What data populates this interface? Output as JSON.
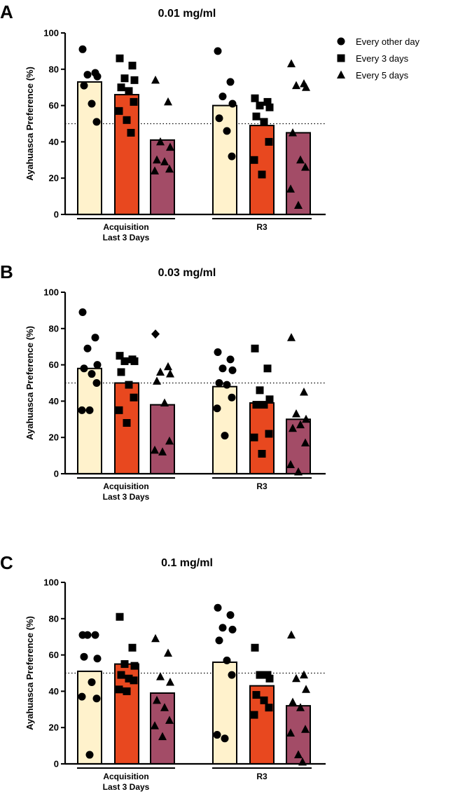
{
  "colors": {
    "Every other day": "#fff2cc",
    "Every 3 days": "#e8481f",
    "Every 5 days": "#a34c67",
    "marker": "#000000",
    "axis": "#000000"
  },
  "legend": {
    "items": [
      {
        "label": "Every other day",
        "marker": "circle"
      },
      {
        "label": "Every 3 days",
        "marker": "square"
      },
      {
        "label": "Every 5 days",
        "marker": "triangle"
      }
    ]
  },
  "chart_data": [
    {
      "type": "bar",
      "panel": "A",
      "title": "0.01 mg/ml",
      "ylabel": "Ayahuasca Preference (%)",
      "ylim": [
        0,
        100
      ],
      "yticks": [
        0,
        20,
        40,
        60,
        80,
        100
      ],
      "reference_line": 50,
      "groups": [
        {
          "label_lines": [
            "Acquisition",
            "Last 3 Days"
          ],
          "bars": [
            {
              "series": "Every other day",
              "value": 73,
              "points": [
                91,
                78,
                77,
                76,
                71,
                61,
                51
              ]
            },
            {
              "series": "Every 3 days",
              "value": 66,
              "points": [
                86,
                82,
                75,
                74,
                70,
                68,
                62,
                57,
                52,
                45
              ]
            },
            {
              "series": "Every 5 days",
              "value": 41,
              "points": [
                74,
                62,
                40,
                37,
                30,
                29,
                25,
                24
              ]
            }
          ]
        },
        {
          "label_lines": [
            "R3"
          ],
          "bars": [
            {
              "series": "Every other day",
              "value": 60,
              "points": [
                90,
                73,
                65,
                61,
                53,
                46,
                32
              ]
            },
            {
              "series": "Every 3 days",
              "value": 49,
              "points": [
                64,
                62,
                60,
                59,
                54,
                51,
                40,
                30,
                22
              ]
            },
            {
              "series": "Every 5 days",
              "value": 45,
              "points": [
                83,
                72,
                71,
                70,
                45,
                30,
                26,
                14,
                5
              ]
            }
          ]
        }
      ]
    },
    {
      "type": "bar",
      "panel": "B",
      "title": "0.03 mg/ml",
      "ylabel": "Ayahuasca Preference (%)",
      "ylim": [
        0,
        100
      ],
      "yticks": [
        0,
        20,
        40,
        60,
        80,
        100
      ],
      "reference_line": 50,
      "groups": [
        {
          "label_lines": [
            "Acquisition",
            "Last 3 Days"
          ],
          "bars": [
            {
              "series": "Every other day",
              "value": 58,
              "points": [
                89,
                75,
                69,
                60,
                58,
                55,
                50,
                35,
                35
              ]
            },
            {
              "series": "Every 3 days",
              "value": 50,
              "points": [
                65,
                63,
                62,
                62,
                56,
                49,
                42,
                35,
                28
              ]
            },
            {
              "series": "Every 5 days",
              "value": 38,
              "points": [
                77,
                59,
                56,
                55,
                51,
                39,
                18,
                13,
                12
              ]
            }
          ]
        },
        {
          "label_lines": [
            "R3"
          ],
          "bars": [
            {
              "series": "Every other day",
              "value": 48,
              "points": [
                67,
                63,
                58,
                57,
                50,
                49,
                42,
                36,
                21
              ]
            },
            {
              "series": "Every 3 days",
              "value": 39,
              "points": [
                69,
                58,
                46,
                41,
                38,
                38,
                22,
                20,
                11
              ]
            },
            {
              "series": "Every 5 days",
              "value": 30,
              "points": [
                75,
                45,
                33,
                30,
                25,
                27,
                17,
                5,
                1
              ]
            }
          ]
        }
      ]
    },
    {
      "type": "bar",
      "panel": "C",
      "title": "0.1 mg/ml",
      "ylabel": "Ayahuasca Preference (%)",
      "ylim": [
        0,
        100
      ],
      "yticks": [
        0,
        20,
        40,
        60,
        80,
        100
      ],
      "reference_line": 50,
      "groups": [
        {
          "label_lines": [
            "Acquisition",
            "Last 3 Days"
          ],
          "bars": [
            {
              "series": "Every other day",
              "value": 51,
              "points": [
                71,
                71,
                71,
                58,
                59,
                45,
                36,
                37,
                5
              ]
            },
            {
              "series": "Every 3 days",
              "value": 55,
              "points": [
                81,
                64,
                55,
                54,
                49,
                47,
                46,
                41,
                40
              ]
            },
            {
              "series": "Every 5 days",
              "value": 39,
              "points": [
                69,
                61,
                48,
                45,
                35,
                31,
                24,
                21,
                15
              ]
            }
          ]
        },
        {
          "label_lines": [
            "R3"
          ],
          "bars": [
            {
              "series": "Every other day",
              "value": 56,
              "points": [
                86,
                82,
                75,
                74,
                68,
                57,
                49,
                16,
                14
              ]
            },
            {
              "series": "Every 3 days",
              "value": 43,
              "points": [
                64,
                49,
                49,
                47,
                38,
                35,
                31,
                27
              ]
            },
            {
              "series": "Every 5 days",
              "value": 32,
              "points": [
                71,
                49,
                47,
                41,
                34,
                31,
                19,
                17,
                5,
                1
              ]
            }
          ]
        }
      ]
    }
  ]
}
